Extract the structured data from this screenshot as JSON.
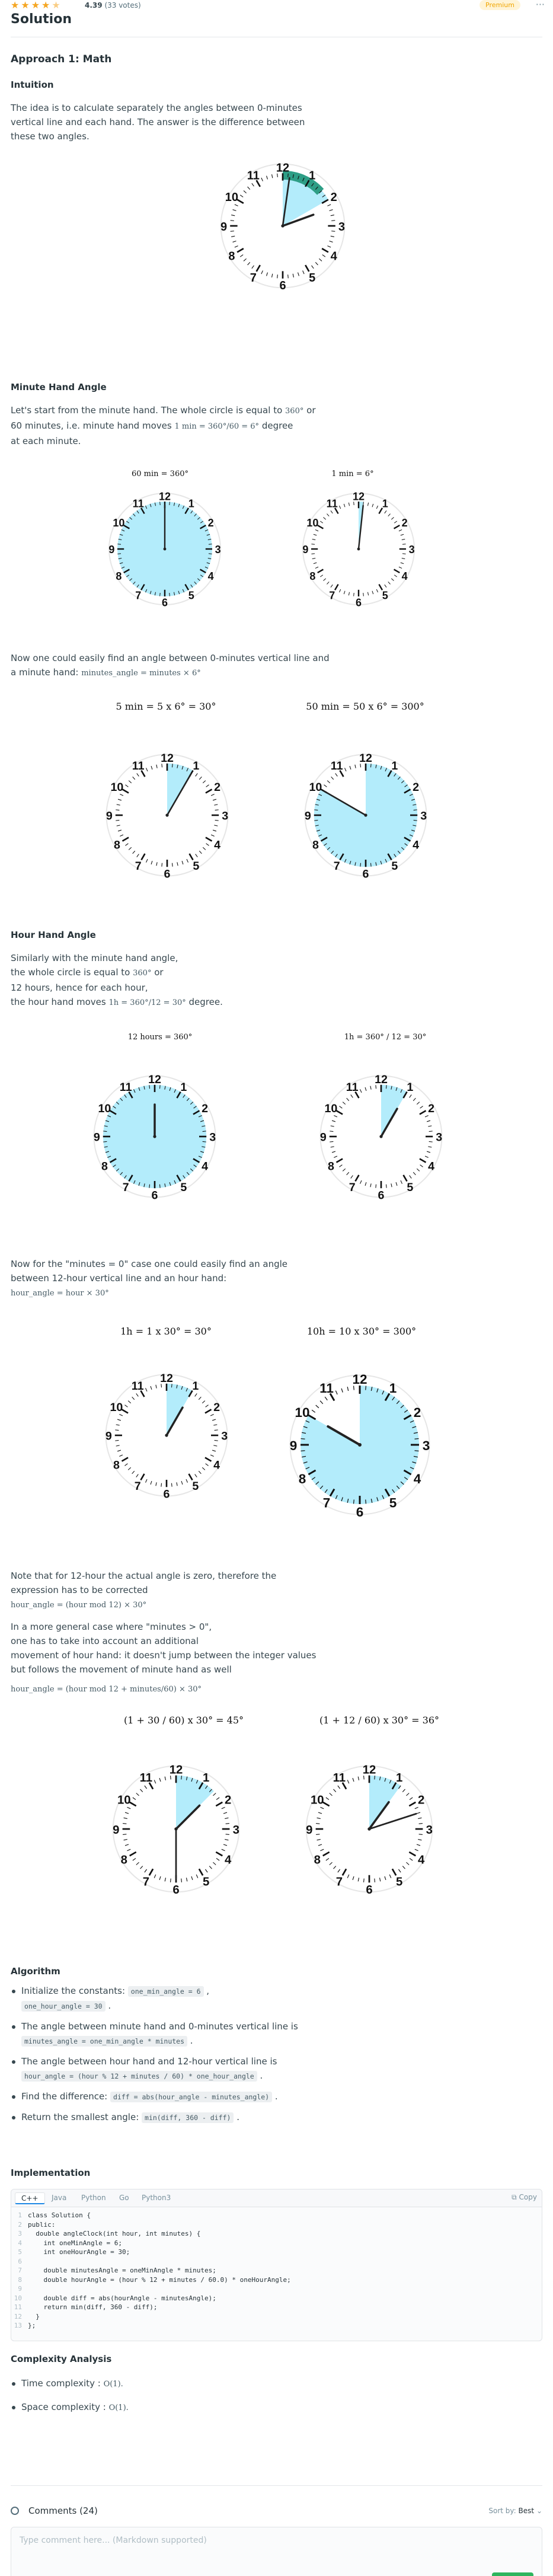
{
  "header": {
    "rating_value": "4.39",
    "rating_votes": "(33 votes)",
    "badge": "Premium",
    "more_icon": "more-horizontal-icon",
    "stars": 4.4
  },
  "title": "Solution",
  "approach_title": "Approach 1: Math",
  "intuition": {
    "heading": "Intuition",
    "text": "The idea is to calculate separately the angles between 0-minutes vertical line and each hand. The answer is the difference between these two angles."
  },
  "minute_hand": {
    "heading": "Minute Hand Angle",
    "line1": "Let's start from the minute hand. The whole circle is equal to",
    "m360": "360°",
    "line1b": "or",
    "line2": "60 minutes, i.e. minute hand moves",
    "m1": "1 min = 360°/60 = 6°",
    "line2b": "degree",
    "line3": "at each minute.",
    "cap1": "60 min = 360°",
    "cap2": "1 min = 6°",
    "now1": "Now one could easily find an angle between 0-minutes vertical line and",
    "now2": "a minute hand:",
    "now_math": "minutes_angle = minutes × 6°",
    "cap3": "5 min = 5 x 6° = 30°",
    "cap4": "50 min = 50 x 6° = 300°"
  },
  "hour_hand": {
    "heading": "Hour Hand Angle",
    "l1": "Similarly with the minute hand angle,",
    "l2": "the whole circle is equal to",
    "m360": "360°",
    "l2b": "or",
    "l3": "12 hours, hence for each hour,",
    "l4": "the hour hand moves",
    "m1": "1h = 360°/12 = 30°",
    "l4b": "degree.",
    "cap1": "12 hours = 360°",
    "cap2": "1h = 360° / 12 = 30°",
    "now1": "Now for the \"minutes = 0\" case one could easily find an angle",
    "now2": "between 12-hour vertical line and an hour hand:",
    "now_math": "hour_angle = hour × 30°",
    "cap3": "1h = 1 x 30° = 30°",
    "cap4": "10h = 10 x 30° = 300°",
    "note1": "Note that for 12-hour the actual angle is zero, therefore the",
    "note2": "expression has to be corrected",
    "note_math": "hour_angle = (hour mod 12) × 30°",
    "gen1": "In a more general case where \"minutes > 0\",",
    "gen2": "one has to take into account an additional",
    "gen3": "movement of hour hand: it doesn't jump between the integer values",
    "gen4": "but follows the movement of minute hand as well",
    "gen_math": "hour_angle = (hour mod 12 + minutes/60) × 30°",
    "cap5": "(1 + 30 / 60) x 30° = 45°",
    "cap6": "(1 + 12 / 60) x 30° = 36°"
  },
  "algorithm": {
    "heading": "Algorithm",
    "items": [
      {
        "text": "Initialize the constants:",
        "code1": "one_min_angle = 6",
        "code2": "one_hour_angle = 30"
      },
      {
        "text": "The angle between minute hand and 0-minutes vertical line is",
        "code1": "minutes_angle = one_min_angle * minutes"
      },
      {
        "text": "The angle between hour hand and 12-hour vertical line is",
        "code1": "hour_angle = (hour % 12 + minutes / 60) * one_hour_angle"
      },
      {
        "text": "Find the difference:",
        "code1": "diff = abs(hour_angle - minutes_angle)"
      },
      {
        "text": "Return the smallest angle:",
        "code1": "min(diff, 360 - diff)"
      }
    ]
  },
  "implementation": {
    "heading": "Implementation",
    "tabs": [
      "C++",
      "Java",
      "Python",
      "Go",
      "Python3"
    ],
    "copy_label": "Copy",
    "lines": [
      "class Solution {",
      "public:",
      "  double angleClock(int hour, int minutes) {",
      "    int oneMinAngle = 6;",
      "    int oneHourAngle = 30;",
      "",
      "    double minutesAngle = oneMinAngle * minutes;",
      "    double hourAngle = (hour % 12 + minutes / 60.0) * oneHourAngle;",
      "",
      "    double diff = abs(hourAngle - minutesAngle);",
      "    return min(diff, 360 - diff);",
      "  }",
      "};"
    ]
  },
  "complexity": {
    "heading": "Complexity Analysis",
    "time_label": "Time complexity :",
    "time_math": "O(1).",
    "space_label": "Space complexity :",
    "space_math": "O(1)."
  },
  "comments": {
    "title": "Comments (24)",
    "sort_label": "Sort by:",
    "sort_value": "Best",
    "placeholder": "Type comment here... (Markdown supported)"
  },
  "clock_labels": [
    "12",
    "1",
    "2",
    "3",
    "4",
    "5",
    "6",
    "7",
    "8",
    "9",
    "10",
    "11"
  ],
  "colors": {
    "accent": "#1e88e5",
    "fill": "#b3ecfb",
    "fill_dark": "#80deea",
    "star": "#f5a623",
    "green": "#2db55d"
  }
}
